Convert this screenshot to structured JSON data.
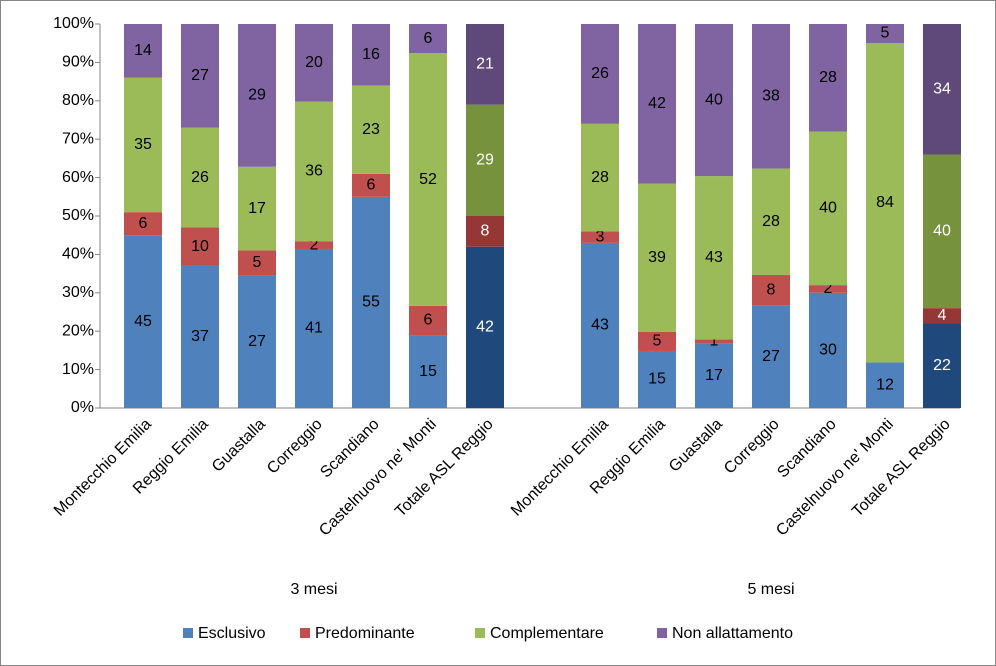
{
  "chart_data": {
    "type": "bar",
    "stacking": "percent",
    "groups": [
      {
        "name": "3 mesi",
        "categories": [
          "Montecchio Emilia",
          "Reggio Emilia",
          "Guastalla",
          "Correggio",
          "Scandiano",
          "Castelnuovo ne' Monti",
          "Totale ASL Reggio"
        ]
      },
      {
        "name": "5 mesi",
        "categories": [
          "Montecchio Emilia",
          "Reggio Emilia",
          "Guastalla",
          "Correggio",
          "Scandiano",
          "Castelnuovo ne' Monti",
          "Totale ASL Reggio"
        ]
      }
    ],
    "highlight_categories": [
      "Totale ASL Reggio"
    ],
    "series": [
      {
        "name": "Esclusivo",
        "color": "#4f81bd",
        "highlight_color": "#1f497d",
        "values": [
          45,
          37,
          27,
          41,
          55,
          15,
          42,
          43,
          15,
          17,
          27,
          30,
          12,
          22
        ]
      },
      {
        "name": "Predominante",
        "color": "#c0504d",
        "highlight_color": "#953735",
        "values": [
          6,
          10,
          5,
          2,
          6,
          6,
          8,
          3,
          5,
          1,
          8,
          2,
          0,
          4
        ]
      },
      {
        "name": "Complementare",
        "color": "#9bbb59",
        "highlight_color": "#76923c",
        "values": [
          35,
          26,
          17,
          36,
          23,
          52,
          29,
          28,
          39,
          43,
          28,
          40,
          84,
          40
        ]
      },
      {
        "name": "Non allattamento",
        "color": "#8064a2",
        "highlight_color": "#5f497a",
        "values": [
          14,
          27,
          29,
          20,
          16,
          6,
          21,
          26,
          42,
          40,
          38,
          28,
          5,
          34
        ]
      }
    ],
    "ylim": [
      0,
      100
    ],
    "yticks": [
      {
        "value": 0,
        "label": "0%"
      },
      {
        "value": 10,
        "label": "10%"
      },
      {
        "value": 20,
        "label": "20%"
      },
      {
        "value": 30,
        "label": "30%"
      },
      {
        "value": 40,
        "label": "40%"
      },
      {
        "value": 50,
        "label": "50%"
      },
      {
        "value": 60,
        "label": "60%"
      },
      {
        "value": 70,
        "label": "70%"
      },
      {
        "value": 80,
        "label": "80%"
      },
      {
        "value": 90,
        "label": "90%"
      },
      {
        "value": 100,
        "label": "100%"
      }
    ],
    "legend": "bottom"
  }
}
